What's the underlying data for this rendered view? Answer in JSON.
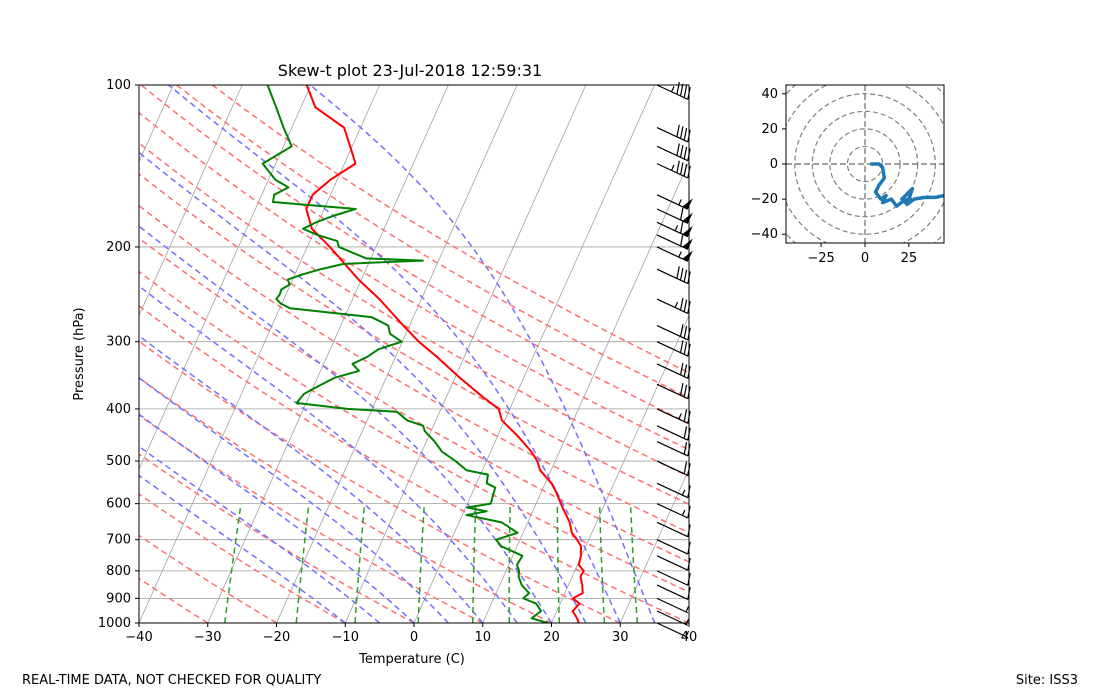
{
  "footer": {
    "left_note": "REAL-TIME DATA, NOT CHECKED FOR QUALITY",
    "site": "Site: ISS3"
  },
  "chart_data": [
    {
      "type": "line",
      "subtype": "skew-t",
      "title": "Skew-t plot 23-Jul-2018 12:59:31",
      "xlabel": "Temperature (C)",
      "ylabel": "Pressure (hPa)",
      "xlim": [
        -40,
        40
      ],
      "ylim": [
        1000,
        100
      ],
      "y_scale": "log",
      "grid": true,
      "x_ticks": [
        -40,
        -30,
        -20,
        -10,
        0,
        10,
        20,
        30,
        40
      ],
      "y_ticks": [
        100,
        200,
        300,
        400,
        500,
        600,
        700,
        800,
        900,
        1000
      ],
      "colors": {
        "temperature": "#ff0000",
        "dewpoint": "#008000",
        "dry_adiabat": "#ff7070",
        "moist_adiabat": "#7070ff",
        "mixing_ratio": "#2ca02c",
        "isotherm": "#a0a0a0",
        "barb": "#000000"
      },
      "series": [
        {
          "key": "temperature",
          "pressure": [
            1000,
            980,
            950,
            920,
            900,
            880,
            850,
            820,
            800,
            780,
            750,
            720,
            700,
            680,
            650,
            620,
            600,
            570,
            550,
            520,
            500,
            480,
            450,
            420,
            400,
            380,
            350,
            320,
            300,
            280,
            260,
            250,
            230,
            210,
            200,
            185,
            170,
            160,
            150,
            140,
            130,
            120,
            110,
            100
          ],
          "values": [
            24.0,
            23.4,
            22.3,
            22.8,
            21.5,
            22.6,
            22.0,
            21.2,
            21.3,
            20.2,
            19.9,
            19.3,
            18.3,
            17.1,
            16.1,
            14.6,
            13.6,
            12.1,
            10.9,
            8.4,
            7.4,
            5.9,
            3.0,
            -0.4,
            -1.6,
            -4.7,
            -9.3,
            -14.0,
            -17.6,
            -20.9,
            -24.3,
            -26.1,
            -30.4,
            -34.5,
            -36.7,
            -40.5,
            -42.6,
            -42.6,
            -41.0,
            -38.4,
            -40.3,
            -42.4,
            -47.9,
            -50.6
          ]
        },
        {
          "key": "dewpoint",
          "pressure": [
            1000,
            980,
            950,
            920,
            900,
            880,
            850,
            820,
            800,
            780,
            750,
            720,
            700,
            680,
            650,
            630,
            620,
            610,
            600,
            580,
            560,
            550,
            530,
            520,
            500,
            480,
            460,
            440,
            430,
            420,
            405,
            400,
            390,
            375,
            365,
            350,
            340,
            330,
            320,
            310,
            300,
            290,
            280,
            270,
            260,
            255,
            250,
            245,
            240,
            235,
            230,
            225,
            220,
            215,
            212,
            210,
            200,
            195,
            190,
            185,
            180,
            175,
            170,
            165,
            160,
            155,
            150,
            140,
            130,
            120,
            110,
            100
          ],
          "values": [
            19.5,
            16.8,
            17.7,
            16.5,
            14.3,
            14.8,
            13.2,
            12.2,
            11.9,
            11.2,
            11.4,
            7.7,
            6.5,
            9.2,
            6.2,
            0.6,
            3.3,
            0.2,
            3.4,
            3.2,
            3.0,
            1.5,
            1.1,
            -2.3,
            -4.5,
            -7.1,
            -8.8,
            -10.9,
            -11.5,
            -14.2,
            -16.2,
            -23.6,
            -31.4,
            -30.9,
            -29.6,
            -27.5,
            -24.4,
            -25.8,
            -24.1,
            -23.0,
            -20.1,
            -22.3,
            -23.1,
            -26.1,
            -38.5,
            -40.1,
            -41.1,
            -40.9,
            -41.0,
            -40.1,
            -40.7,
            -38.9,
            -36.6,
            -33.6,
            -22.3,
            -30.7,
            -35.4,
            -36.0,
            -39.3,
            -41.8,
            -40.3,
            -38.2,
            -35.4,
            -47.9,
            -48.2,
            -46.6,
            -49.0,
            -51.9,
            -48.8,
            -51.2,
            -53.6,
            -56.3
          ]
        }
      ],
      "wind_barbs": {
        "pressure": [
          100,
          120,
          130,
          140,
          160,
          170,
          180,
          190,
          200,
          220,
          250,
          280,
          300,
          330,
          360,
          400,
          430,
          460,
          500,
          550,
          600,
          650,
          700,
          750,
          800,
          850,
          900,
          950,
          1000
        ],
        "speed_kt": [
          45,
          40,
          42,
          45,
          55,
          60,
          65,
          60,
          55,
          40,
          35,
          30,
          30,
          32,
          30,
          25,
          22,
          20,
          18,
          15,
          15,
          12,
          10,
          10,
          8,
          8,
          5,
          5,
          5
        ]
      }
    },
    {
      "type": "scatter",
      "subtype": "hodograph",
      "xlim": [
        -45,
        45
      ],
      "ylim": [
        -45,
        45
      ],
      "x_ticks": [
        -25,
        0,
        25
      ],
      "y_ticks": [
        -40,
        -20,
        0,
        20,
        40
      ],
      "rings": [
        10,
        20,
        30,
        40,
        50,
        60
      ],
      "color": "#1f77b4",
      "u": [
        3,
        8,
        10,
        11,
        8,
        6,
        9,
        12,
        10,
        15,
        18,
        22,
        25,
        27,
        21,
        23,
        26,
        24,
        28,
        34,
        40,
        45
      ],
      "v": [
        0,
        0,
        -2,
        -8,
        -12,
        -16,
        -20,
        -18,
        -22,
        -20,
        -24,
        -21,
        -20,
        -14,
        -20,
        -22,
        -20,
        -23,
        -20,
        -19,
        -19,
        -18
      ]
    }
  ]
}
